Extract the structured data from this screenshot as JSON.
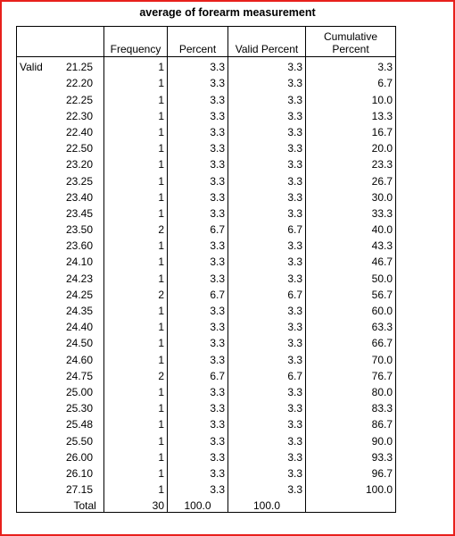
{
  "title": "average of forearm measurement",
  "headers": {
    "frequency": "Frequency",
    "percent": "Percent",
    "valid_percent": "Valid Percent",
    "cumulative_line1": "Cumulative",
    "cumulative_line2": "Percent"
  },
  "group_label": "Valid",
  "rows": [
    {
      "value": "21.25",
      "frequency": "1",
      "percent": "3.3",
      "valid_percent": "3.3",
      "cumulative": "3.3"
    },
    {
      "value": "22.20",
      "frequency": "1",
      "percent": "3.3",
      "valid_percent": "3.3",
      "cumulative": "6.7"
    },
    {
      "value": "22.25",
      "frequency": "1",
      "percent": "3.3",
      "valid_percent": "3.3",
      "cumulative": "10.0"
    },
    {
      "value": "22.30",
      "frequency": "1",
      "percent": "3.3",
      "valid_percent": "3.3",
      "cumulative": "13.3"
    },
    {
      "value": "22.40",
      "frequency": "1",
      "percent": "3.3",
      "valid_percent": "3.3",
      "cumulative": "16.7"
    },
    {
      "value": "22.50",
      "frequency": "1",
      "percent": "3.3",
      "valid_percent": "3.3",
      "cumulative": "20.0"
    },
    {
      "value": "23.20",
      "frequency": "1",
      "percent": "3.3",
      "valid_percent": "3.3",
      "cumulative": "23.3"
    },
    {
      "value": "23.25",
      "frequency": "1",
      "percent": "3.3",
      "valid_percent": "3.3",
      "cumulative": "26.7"
    },
    {
      "value": "23.40",
      "frequency": "1",
      "percent": "3.3",
      "valid_percent": "3.3",
      "cumulative": "30.0"
    },
    {
      "value": "23.45",
      "frequency": "1",
      "percent": "3.3",
      "valid_percent": "3.3",
      "cumulative": "33.3"
    },
    {
      "value": "23.50",
      "frequency": "2",
      "percent": "6.7",
      "valid_percent": "6.7",
      "cumulative": "40.0"
    },
    {
      "value": "23.60",
      "frequency": "1",
      "percent": "3.3",
      "valid_percent": "3.3",
      "cumulative": "43.3"
    },
    {
      "value": "24.10",
      "frequency": "1",
      "percent": "3.3",
      "valid_percent": "3.3",
      "cumulative": "46.7"
    },
    {
      "value": "24.23",
      "frequency": "1",
      "percent": "3.3",
      "valid_percent": "3.3",
      "cumulative": "50.0"
    },
    {
      "value": "24.25",
      "frequency": "2",
      "percent": "6.7",
      "valid_percent": "6.7",
      "cumulative": "56.7"
    },
    {
      "value": "24.35",
      "frequency": "1",
      "percent": "3.3",
      "valid_percent": "3.3",
      "cumulative": "60.0"
    },
    {
      "value": "24.40",
      "frequency": "1",
      "percent": "3.3",
      "valid_percent": "3.3",
      "cumulative": "63.3"
    },
    {
      "value": "24.50",
      "frequency": "1",
      "percent": "3.3",
      "valid_percent": "3.3",
      "cumulative": "66.7"
    },
    {
      "value": "24.60",
      "frequency": "1",
      "percent": "3.3",
      "valid_percent": "3.3",
      "cumulative": "70.0"
    },
    {
      "value": "24.75",
      "frequency": "2",
      "percent": "6.7",
      "valid_percent": "6.7",
      "cumulative": "76.7"
    },
    {
      "value": "25.00",
      "frequency": "1",
      "percent": "3.3",
      "valid_percent": "3.3",
      "cumulative": "80.0"
    },
    {
      "value": "25.30",
      "frequency": "1",
      "percent": "3.3",
      "valid_percent": "3.3",
      "cumulative": "83.3"
    },
    {
      "value": "25.48",
      "frequency": "1",
      "percent": "3.3",
      "valid_percent": "3.3",
      "cumulative": "86.7"
    },
    {
      "value": "25.50",
      "frequency": "1",
      "percent": "3.3",
      "valid_percent": "3.3",
      "cumulative": "90.0"
    },
    {
      "value": "26.00",
      "frequency": "1",
      "percent": "3.3",
      "valid_percent": "3.3",
      "cumulative": "93.3"
    },
    {
      "value": "26.10",
      "frequency": "1",
      "percent": "3.3",
      "valid_percent": "3.3",
      "cumulative": "96.7"
    },
    {
      "value": "27.15",
      "frequency": "1",
      "percent": "3.3",
      "valid_percent": "3.3",
      "cumulative": "100.0"
    }
  ],
  "total": {
    "label": "Total",
    "frequency": "30",
    "percent": "100.0",
    "valid_percent": "100.0"
  },
  "colors": {
    "frame_border": "#e8201c",
    "text": "#000000",
    "background": "#ffffff"
  }
}
